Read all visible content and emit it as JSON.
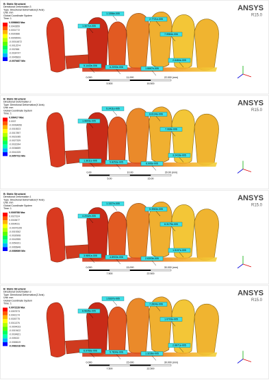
{
  "brand": {
    "name": "ANSYS",
    "version": "R15.0"
  },
  "panels": [
    {
      "header": [
        "B: Static Structural",
        "Directional Deformation 3",
        "Type: Directional Deformation(Z Axis)",
        "Unit: mm",
        "Global Coordinate System",
        "Time: 1"
      ],
      "legend": [
        "0.0056663 Max",
        "0.0042859",
        "0.0031772",
        "0.0020686",
        "0.00095991",
        "-0.00014872",
        "-0.0012574",
        "-0.002366",
        "-0.0034747",
        "-0.0045833",
        "-0.0079457 Min"
      ],
      "probes": [
        "1.1356e-005",
        "2.7721e-005",
        "1.3071e-005",
        "7.9984e-006",
        "5.1443e-006",
        "6.2093e-006",
        "1.6667e-005",
        "2.6484e-005"
      ],
      "scale": [
        "0.000",
        "11.000",
        "22.000 (mm)",
        "5.500",
        "16.500"
      ]
    },
    {
      "header": [
        "B: Static Structural",
        "Directional Deformation 2",
        "Type: Directional Deformation(X Axis)",
        "Unit: mm",
        "Global Coordinate System",
        "Time: 1"
      ],
      "legend": [
        "0.006417 Max",
        "0.0037",
        "-0.00064656",
        "-0.0015523",
        "-0.0017897",
        "-0.0021065",
        "-0.0027329",
        "-0.0031994",
        "-0.0036659",
        "-0.0041325",
        "-0.0057722 Min"
      ],
      "probes": [
        "5.2411e-005",
        "8.6134e-006",
        "1.9604e-005",
        "7.968e-006",
        "1.3611e-005",
        "5.8253e-005",
        "6.995e-005",
        "3.2416e-005"
      ],
      "scale": [
        "0.00",
        "10.00",
        "20.00 (mm)",
        "5.00",
        "15.00"
      ]
    },
    {
      "header": [
        "B: Static Structural",
        "Directional Deformation 1",
        "Type: Directional Deformation(Y Axis)",
        "Unit: mm",
        "Global Coordinate System",
        "Time: 1"
      ],
      "legend": [
        "0.0039788 Max",
        "0.0027324",
        "0.0015677",
        "0.0004031",
        "-0.00076155",
        "-0.0019262",
        "-0.0030908",
        "-0.0042555",
        "-0.0054201",
        "-0.0065848",
        "-0.0089069 Min"
      ],
      "probes": [
        "1.1327e-005",
        "5.3963e-005",
        "4.2042e-005",
        "6.3179e-005",
        "3.9891e-005",
        "4.8903e-006",
        "2.6303e-005",
        "1.5197e-005"
      ],
      "scale": [
        "0.000",
        "15.000",
        "30.000 (mm)",
        "7.500",
        "22.500"
      ]
    },
    {
      "header": [
        "B: Static Structural",
        "Directional Deformation 3",
        "Type: Directional Deformation(Z Axis)",
        "Unit: mm",
        "Global Coordinate System",
        "Time: 1"
      ],
      "legend": [
        "0.0072228 Max",
        "0.0057573",
        "0.0042174",
        "0.0026775",
        "0.0011376",
        "-0.0004023",
        "-0.0019422",
        "-0.0034821",
        "-0.005022",
        "-0.0065619",
        "-0.0081018 Min"
      ],
      "probes": [
        "1.5337e-005",
        "7.2834e-006",
        "6.5635e-005",
        "1.0703e-005",
        "6.9766e-006",
        "5.7834e-006",
        "1.3236e-005",
        "2.6871e-005"
      ],
      "scale": [
        "0.000",
        "15.000",
        "30.000 (mm)",
        "7.500",
        "22.500"
      ]
    }
  ]
}
